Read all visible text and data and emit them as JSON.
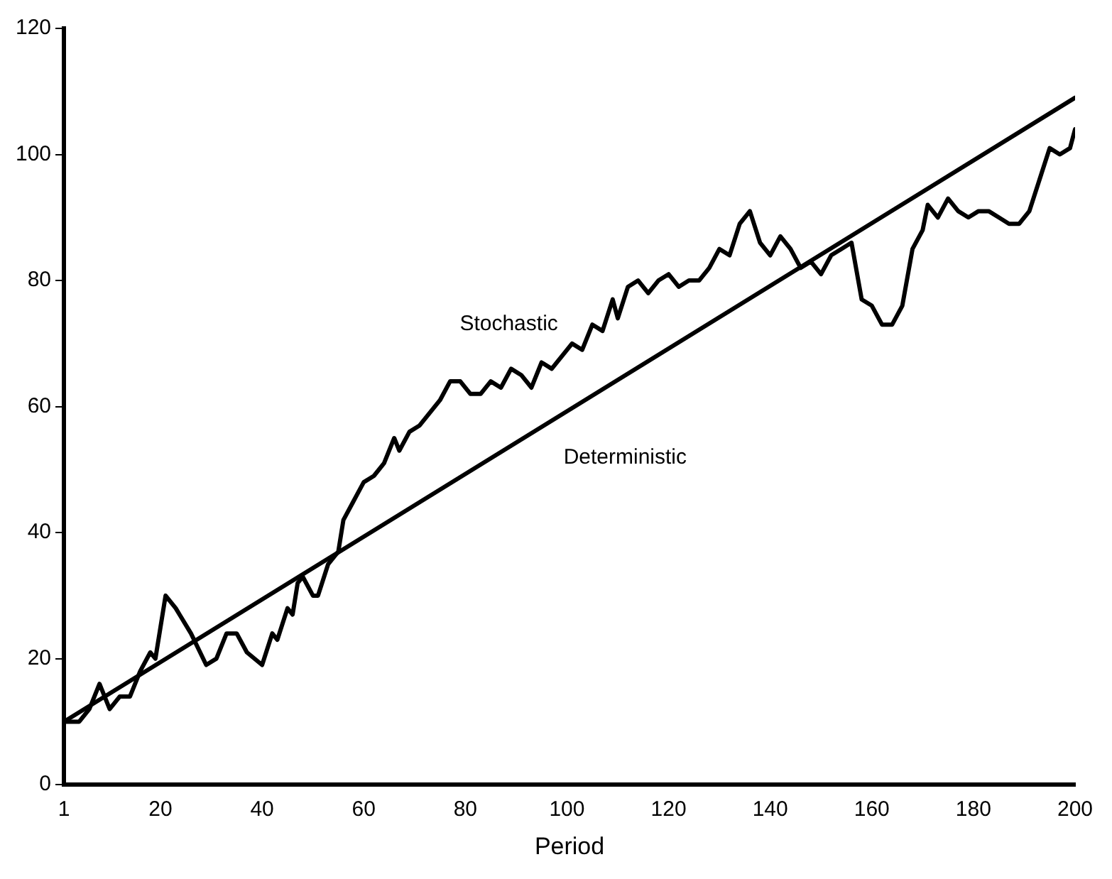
{
  "chart_data": {
    "type": "line",
    "xlabel": "Period",
    "xlim": [
      1,
      200
    ],
    "xticks": [
      1,
      20,
      40,
      60,
      80,
      100,
      120,
      140,
      160,
      180,
      200
    ],
    "ylim": [
      0,
      120
    ],
    "yticks": [
      0,
      20,
      40,
      60,
      80,
      100,
      120
    ],
    "grid": false,
    "legend": false,
    "marker": "none",
    "line_style": "solid",
    "series": [
      {
        "name": "Stochastic",
        "color": "#000000",
        "x": [
          1,
          4,
          6,
          8,
          10,
          12,
          14,
          16,
          18,
          19,
          21,
          23,
          26,
          29,
          31,
          33,
          35,
          37,
          40,
          42,
          43,
          45,
          46,
          47,
          48,
          50,
          51,
          53,
          55,
          56,
          58,
          60,
          62,
          64,
          66,
          67,
          69,
          71,
          73,
          75,
          77,
          79,
          81,
          83,
          85,
          87,
          89,
          91,
          93,
          95,
          97,
          99,
          101,
          103,
          105,
          107,
          109,
          110,
          112,
          114,
          116,
          118,
          120,
          122,
          124,
          126,
          128,
          130,
          132,
          134,
          136,
          138,
          140,
          142,
          144,
          146,
          148,
          150,
          152,
          154,
          156,
          158,
          160,
          162,
          164,
          166,
          168,
          170,
          171,
          173,
          175,
          177,
          179,
          181,
          183,
          185,
          187,
          189,
          191,
          193,
          195,
          197,
          199,
          200
        ],
        "values": [
          10,
          10,
          12,
          16,
          12,
          14,
          14,
          18,
          21,
          20,
          30,
          28,
          24,
          19,
          20,
          24,
          24,
          21,
          19,
          24,
          23,
          28,
          27,
          32,
          33,
          30,
          30,
          35,
          37,
          42,
          45,
          48,
          49,
          51,
          55,
          53,
          56,
          57,
          59,
          61,
          64,
          64,
          62,
          62,
          64,
          63,
          66,
          65,
          63,
          67,
          66,
          68,
          70,
          69,
          73,
          72,
          77,
          74,
          79,
          80,
          78,
          80,
          81,
          79,
          80,
          80,
          82,
          85,
          84,
          89,
          91,
          86,
          84,
          87,
          85,
          82,
          83,
          81,
          84,
          85,
          86,
          77,
          76,
          73,
          73,
          76,
          85,
          88,
          92,
          90,
          93,
          91,
          90,
          91,
          91,
          90,
          89,
          89,
          91,
          96,
          101,
          100,
          101,
          104
        ]
      },
      {
        "name": "Deterministic",
        "color": "#000000",
        "x": [
          1,
          200
        ],
        "values": [
          10,
          109
        ]
      }
    ]
  }
}
